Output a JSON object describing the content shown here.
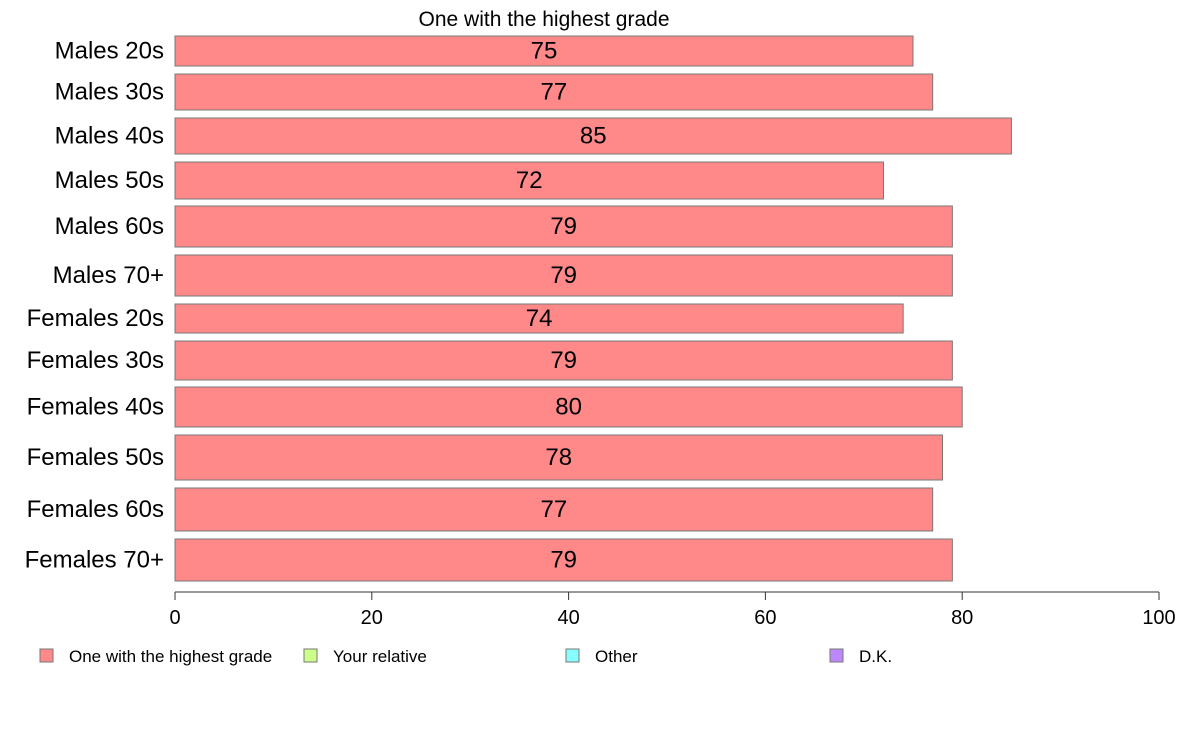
{
  "chart_data": {
    "type": "bar",
    "orientation": "horizontal",
    "title": "One with the highest grade",
    "xlabel": "",
    "ylabel": "",
    "xlim": [
      0,
      100
    ],
    "ticks": [
      "0",
      "20",
      "40",
      "60",
      "80",
      "100"
    ],
    "grid": false,
    "legend_placement": "bottom",
    "categories": [
      "Males 20s",
      "Males 30s",
      "Males 40s",
      "Males 50s",
      "Males 60s",
      "Males 70+",
      "Females 20s",
      "Females 30s",
      "Females 40s",
      "Females 50s",
      "Females 60s",
      "Females 70+"
    ],
    "series": [
      {
        "name": "One with the highest grade",
        "color": "#ff8888",
        "values": [
          75,
          77,
          85,
          72,
          79,
          79,
          74,
          79,
          80,
          78,
          77,
          79
        ]
      }
    ],
    "legend": [
      {
        "label": "One with the highest grade",
        "color": "#ff8888"
      },
      {
        "label": "Your relative",
        "color": "#ccff88"
      },
      {
        "label": "Other",
        "color": "#88ffff"
      },
      {
        "label": "D.K.",
        "color": "#bb88ff"
      }
    ]
  }
}
